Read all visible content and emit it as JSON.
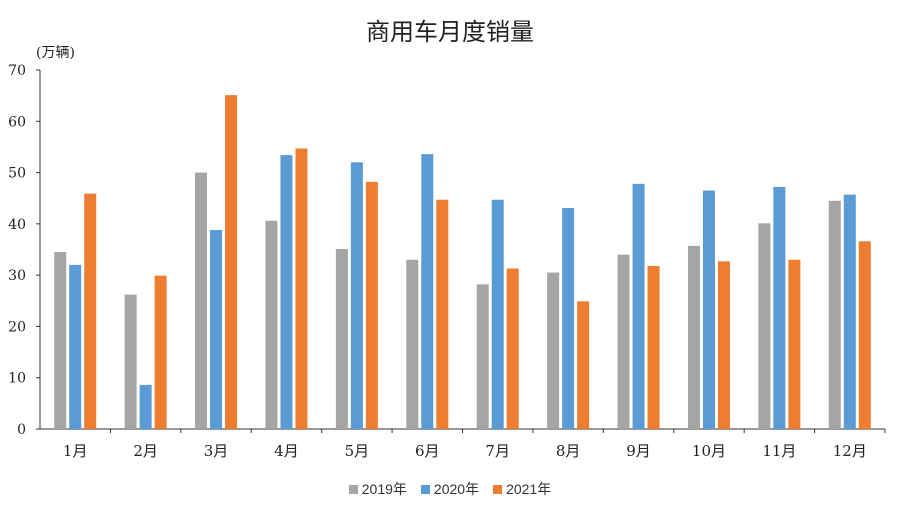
{
  "chart_data": {
    "type": "bar",
    "title": "商用车月度销量",
    "ylabel": "(万辆)",
    "xlabel": "",
    "ylim": [
      0,
      70
    ],
    "yticks": [
      0,
      10,
      20,
      30,
      40,
      50,
      60,
      70
    ],
    "grid": false,
    "legend_position": "bottom",
    "categories": [
      "1月",
      "2月",
      "3月",
      "4月",
      "5月",
      "6月",
      "7月",
      "8月",
      "9月",
      "10月",
      "11月",
      "12月"
    ],
    "series": [
      {
        "name": "2019年",
        "color": "#a5a5a5",
        "values": [
          34.5,
          26.2,
          50.0,
          40.6,
          35.1,
          33.0,
          28.2,
          30.5,
          34.0,
          35.7,
          40.1,
          44.5
        ]
      },
      {
        "name": "2020年",
        "color": "#5b9bd5",
        "values": [
          32.0,
          8.6,
          38.8,
          53.4,
          52.0,
          53.6,
          44.7,
          43.1,
          47.8,
          46.5,
          47.2,
          45.7
        ]
      },
      {
        "name": "2021年",
        "color": "#ed7d31",
        "values": [
          45.9,
          29.9,
          65.1,
          54.7,
          48.2,
          44.7,
          31.3,
          24.9,
          31.8,
          32.7,
          33.0,
          36.6
        ]
      }
    ]
  }
}
